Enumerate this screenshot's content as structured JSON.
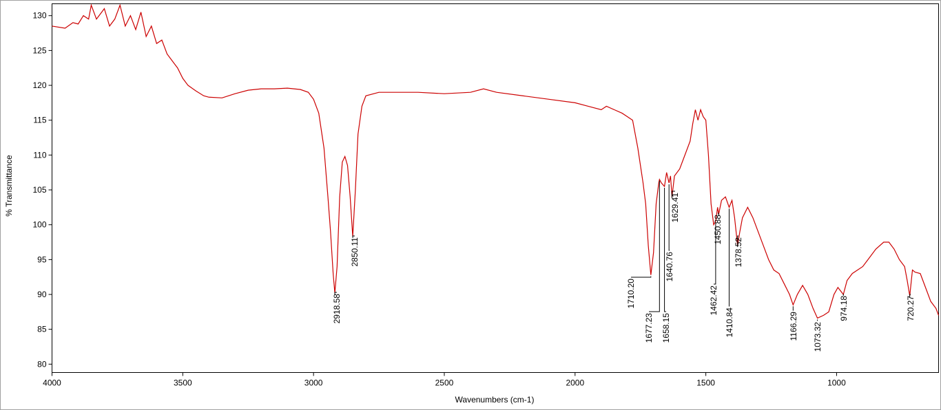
{
  "chart_data": {
    "type": "line",
    "x_label": "Wavenumbers (cm-1)",
    "y_label": "% Transmittance",
    "color": "#cc0000",
    "xlim": [
      4000,
      610
    ],
    "ylim": [
      78.8,
      131.7
    ],
    "xticks": [
      4000,
      3500,
      3000,
      2500,
      2000,
      1500,
      1000
    ],
    "yticks": [
      80,
      85,
      90,
      95,
      100,
      105,
      110,
      115,
      120,
      125,
      130
    ],
    "x": [
      4000,
      3950,
      3920,
      3900,
      3880,
      3860,
      3850,
      3830,
      3800,
      3780,
      3760,
      3740,
      3720,
      3700,
      3680,
      3660,
      3640,
      3620,
      3600,
      3580,
      3560,
      3540,
      3520,
      3500,
      3480,
      3450,
      3420,
      3400,
      3350,
      3300,
      3250,
      3200,
      3150,
      3100,
      3050,
      3020,
      3000,
      2980,
      2960,
      2945,
      2935,
      2925,
      2918.58,
      2910,
      2900,
      2890,
      2880,
      2870,
      2860,
      2850.11,
      2840,
      2830,
      2815,
      2800,
      2750,
      2700,
      2600,
      2500,
      2400,
      2350,
      2300,
      2200,
      2100,
      2000,
      1950,
      1900,
      1880,
      1850,
      1820,
      1800,
      1780,
      1760,
      1740,
      1730,
      1720,
      1710.2,
      1700,
      1690,
      1680,
      1677.23,
      1670,
      1658.15,
      1650,
      1640.76,
      1635,
      1629.41,
      1620,
      1600,
      1580,
      1560,
      1550,
      1540,
      1530,
      1520,
      1510,
      1500,
      1490,
      1480,
      1470,
      1462.42,
      1455,
      1450.88,
      1440,
      1425,
      1410.84,
      1400,
      1390,
      1378.52,
      1370,
      1360,
      1340,
      1320,
      1300,
      1280,
      1260,
      1240,
      1220,
      1200,
      1180,
      1166.29,
      1150,
      1130,
      1110,
      1090,
      1073.32,
      1050,
      1030,
      1010,
      995,
      974.18,
      960,
      940,
      900,
      880,
      850,
      820,
      800,
      780,
      760,
      740,
      730,
      720.27,
      710,
      700,
      680,
      660,
      640,
      620,
      610
    ],
    "values": [
      128.5,
      128.2,
      129,
      128.8,
      130,
      129.5,
      131.5,
      129.5,
      131,
      128.5,
      129.5,
      131.5,
      128.5,
      130,
      128,
      130.5,
      127,
      128.5,
      126,
      126.5,
      124.5,
      123.5,
      122.5,
      121,
      120,
      119.2,
      118.5,
      118.3,
      118.2,
      118.8,
      119.3,
      119.5,
      119.5,
      119.6,
      119.4,
      119,
      118,
      116,
      111,
      104,
      99,
      93,
      90.2,
      94,
      104,
      109,
      109.8,
      108.5,
      104,
      98.3,
      105,
      113,
      117,
      118.5,
      119,
      119,
      119,
      118.8,
      119,
      119.5,
      119,
      118.5,
      118,
      117.5,
      117,
      116.5,
      117,
      116.5,
      116,
      115.5,
      115,
      111,
      106,
      103,
      97,
      92.8,
      96,
      103,
      106,
      106.5,
      106,
      105.5,
      107.5,
      106,
      107,
      104,
      107,
      108,
      110,
      112,
      114.5,
      116.5,
      115,
      116.5,
      115.5,
      115,
      110,
      103,
      100,
      100.5,
      102.5,
      101.5,
      103.5,
      104,
      102.5,
      103.5,
      101,
      97,
      99,
      101,
      102.5,
      101,
      99,
      97,
      95,
      93.5,
      93,
      91.5,
      90,
      88.5,
      90,
      91.3,
      90,
      88,
      86.6,
      87,
      87.5,
      90,
      91,
      90,
      92,
      93,
      94,
      95,
      96.5,
      97.5,
      97.5,
      96.5,
      95,
      94,
      92,
      89.8,
      93.5,
      93.2,
      93,
      91,
      89,
      88,
      87
    ],
    "annotations": [
      {
        "value": 2918.58,
        "label": "2918.58"
      },
      {
        "value": 2850.11,
        "label": "2850.11"
      },
      {
        "value": 1710.2,
        "label": "1710.20"
      },
      {
        "value": 1677.23,
        "label": "1677.23"
      },
      {
        "value": 1658.15,
        "label": "1658.15"
      },
      {
        "value": 1640.76,
        "label": "1640.76"
      },
      {
        "value": 1629.41,
        "label": "1629.41"
      },
      {
        "value": 1462.42,
        "label": "1462.42"
      },
      {
        "value": 1450.88,
        "label": "1450.88"
      },
      {
        "value": 1410.84,
        "label": "1410.84"
      },
      {
        "value": 1378.52,
        "label": "1378.52"
      },
      {
        "value": 1166.29,
        "label": "1166.29"
      },
      {
        "value": 1073.32,
        "label": "1073.32"
      },
      {
        "value": 974.18,
        "label": "974.18"
      },
      {
        "value": 720.27,
        "label": "720.27"
      }
    ]
  }
}
